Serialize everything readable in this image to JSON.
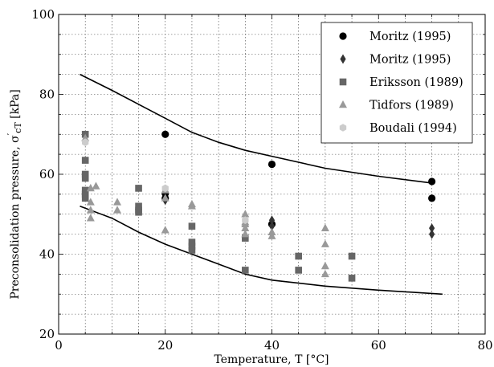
{
  "chart_data": {
    "type": "scatter",
    "xlabel": "Temperature, T [°C]",
    "ylabel_main": "Preconsolidation pressure, σ",
    "ylabel_sup": "′",
    "ylabel_sub": "cT",
    "ylabel_unit": " [kPa]",
    "xlim": [
      0,
      80
    ],
    "ylim": [
      20,
      100
    ],
    "x_ticks": [
      0,
      20,
      40,
      60,
      80
    ],
    "y_ticks": [
      20,
      40,
      60,
      80,
      100
    ],
    "grid": true,
    "legend_position": "top-right",
    "series": [
      {
        "name": "Moritz (1995)",
        "marker": "circle",
        "color": "#000000",
        "points": [
          [
            20,
            70
          ],
          [
            20,
            55.2
          ],
          [
            20,
            54
          ],
          [
            40,
            62.5
          ],
          [
            40,
            47.5
          ],
          [
            70,
            58.2
          ],
          [
            70,
            54
          ]
        ]
      },
      {
        "name": "Moritz (1995)",
        "marker": "diamond",
        "color": "#333333",
        "points": [
          [
            20,
            53.5
          ],
          [
            40,
            48.5
          ],
          [
            40,
            47
          ],
          [
            70,
            46.5
          ],
          [
            70,
            45
          ]
        ]
      },
      {
        "name": "Eriksson (1989)",
        "marker": "square",
        "color": "#666666",
        "points": [
          [
            5,
            70
          ],
          [
            5,
            63.5
          ],
          [
            5,
            60
          ],
          [
            5,
            59
          ],
          [
            5,
            56
          ],
          [
            5,
            55
          ],
          [
            5,
            54
          ],
          [
            15,
            56.5
          ],
          [
            15,
            52
          ],
          [
            15,
            51
          ],
          [
            15,
            50.5
          ],
          [
            25,
            47
          ],
          [
            25,
            43
          ],
          [
            25,
            42
          ],
          [
            25,
            41
          ],
          [
            35,
            44
          ],
          [
            35,
            36
          ],
          [
            45,
            39.5
          ],
          [
            45,
            36
          ],
          [
            55,
            39.5
          ],
          [
            55,
            34
          ]
        ]
      },
      {
        "name": "Tidfors (1989)",
        "marker": "triangle",
        "color": "#999999",
        "points": [
          [
            5,
            69
          ],
          [
            6,
            56.5
          ],
          [
            6,
            53
          ],
          [
            6,
            51
          ],
          [
            6,
            49
          ],
          [
            7,
            57
          ],
          [
            11,
            53
          ],
          [
            11,
            51
          ],
          [
            20,
            56
          ],
          [
            20,
            54
          ],
          [
            20,
            46
          ],
          [
            25,
            52.5
          ],
          [
            25,
            52
          ],
          [
            35,
            50
          ],
          [
            35,
            48
          ],
          [
            35,
            47.5
          ],
          [
            35,
            46.5
          ],
          [
            35,
            45
          ],
          [
            40,
            45.5
          ],
          [
            40,
            44.5
          ],
          [
            50,
            46.5
          ],
          [
            50,
            42.5
          ],
          [
            50,
            37
          ],
          [
            50,
            35
          ]
        ]
      },
      {
        "name": "Boudali (1994)",
        "marker": "hexagon",
        "color": "#cccccc",
        "points": [
          [
            5,
            68
          ],
          [
            20,
            56.5
          ],
          [
            35,
            48.5
          ]
        ]
      }
    ],
    "envelope_lines": [
      {
        "x": [
          4,
          10,
          15,
          20,
          25,
          30,
          35,
          40,
          50,
          60,
          70
        ],
        "y": [
          85,
          81,
          77.5,
          74,
          70.5,
          68,
          66,
          64.5,
          61.5,
          59.5,
          57.8
        ]
      },
      {
        "x": [
          4,
          10,
          15,
          20,
          25,
          30,
          35,
          40,
          50,
          60,
          72
        ],
        "y": [
          52,
          49,
          45.5,
          42.5,
          40,
          37.5,
          35,
          33.5,
          32,
          31,
          30
        ]
      }
    ]
  }
}
